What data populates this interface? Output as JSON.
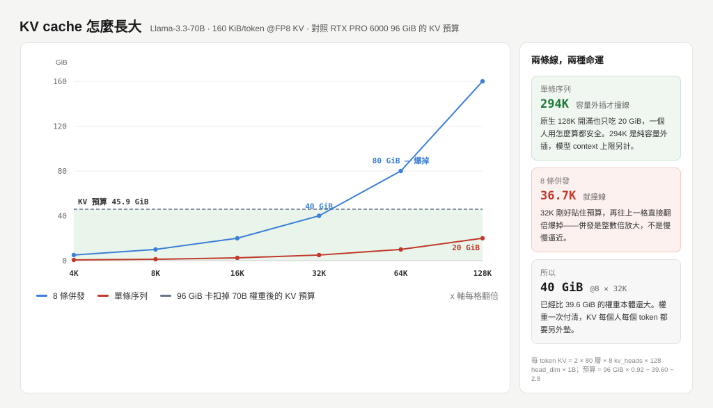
{
  "header": {
    "title": "KV cache 怎麼長大",
    "subtitle": "Llama-3.3-70B · 160 KiB/token @FP8 KV · 對照 RTX PRO 6000 96 GiB 的 KV 預算"
  },
  "chart_data": {
    "type": "line",
    "ylabel": "GiB",
    "xlabel": "",
    "categories": [
      "4K",
      "8K",
      "16K",
      "32K",
      "64K",
      "128K"
    ],
    "ylim": [
      0,
      160
    ],
    "yticks": [
      0,
      40,
      80,
      120,
      160
    ],
    "grid": "horizontal",
    "series": [
      {
        "name": "8 條併發",
        "color": "#3b7fd6",
        "values": [
          5,
          10,
          20,
          40,
          80,
          160
        ]
      },
      {
        "name": "單條序列",
        "color": "#c0392b",
        "values": [
          0.625,
          1.25,
          2.5,
          5,
          10,
          20
        ]
      }
    ],
    "budget": {
      "value": 45.9,
      "label": "KV 預算 45.9 GiB",
      "legend": "96 GiB 卡扣掉 70B 權重後的 KV 預算",
      "color": "#6b7488",
      "fill": "#e9f4eb"
    },
    "annotations": [
      {
        "series": 0,
        "index": 4,
        "text": "80 GiB — 爆掉"
      },
      {
        "series": 0,
        "index": 3,
        "text": "40 GiB"
      },
      {
        "series": 1,
        "index": 5,
        "text": "20 GiB"
      }
    ],
    "axis_note": "x 軸每格翻倍"
  },
  "side": {
    "title": "兩條線，兩種命運",
    "cards": [
      {
        "label": "單條序列",
        "value": "294K",
        "tag": "容量外插才撞線",
        "desc": "原生 128K 開滿也只吃 20 GiB，一個人用怎麼算都安全。294K 是純容量外插，模型 context 上限另計。"
      },
      {
        "label": "8 條併發",
        "value": "36.7K",
        "tag": "就撞線",
        "desc": "32K 剛好貼住預算，再往上一格直接翻倍爆掉——併發是整數倍放大，不是慢慢逼近。"
      },
      {
        "label": "所以",
        "value": "40 GiB",
        "tag": "@8 × 32K",
        "desc": "已經比 39.6 GiB 的權重本體還大。權重一次付清，KV 每個人每個 token 都要另外墊。"
      }
    ],
    "footnote": "每 token KV = 2 × 80 層 × 8 kv_heads × 128 head_dim × 1B；預算 = 96 GiB × 0.92 − 39.60 − 2.8"
  }
}
